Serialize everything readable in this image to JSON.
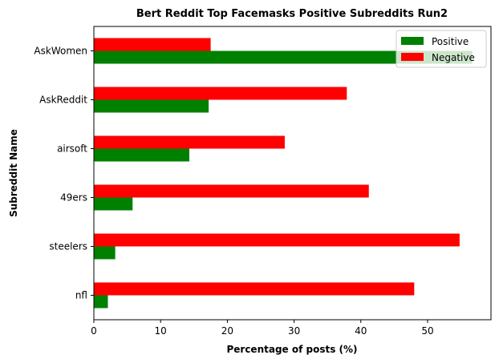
{
  "chart_data": {
    "type": "bar",
    "orientation": "horizontal",
    "title": "Bert Reddit Top Facemasks Positive Subreddits Run2",
    "xlabel": "Percentage of posts (%)",
    "ylabel": "Subreddit Name",
    "categories": [
      "nfl",
      "steelers",
      "49ers",
      "airsoft",
      "AskReddit",
      "AskWomen"
    ],
    "series": [
      {
        "name": "Positive",
        "color": "#008000",
        "values": [
          2.1,
          3.2,
          5.8,
          14.3,
          17.2,
          56.7
        ]
      },
      {
        "name": "Negative",
        "color": "#ff0000",
        "values": [
          48.0,
          54.8,
          41.2,
          28.6,
          37.9,
          17.5
        ]
      }
    ],
    "xlim": [
      0,
      59.5
    ],
    "xticks": [
      0,
      10,
      20,
      30,
      40,
      50
    ],
    "grid": false,
    "legend_position": "top-right"
  }
}
